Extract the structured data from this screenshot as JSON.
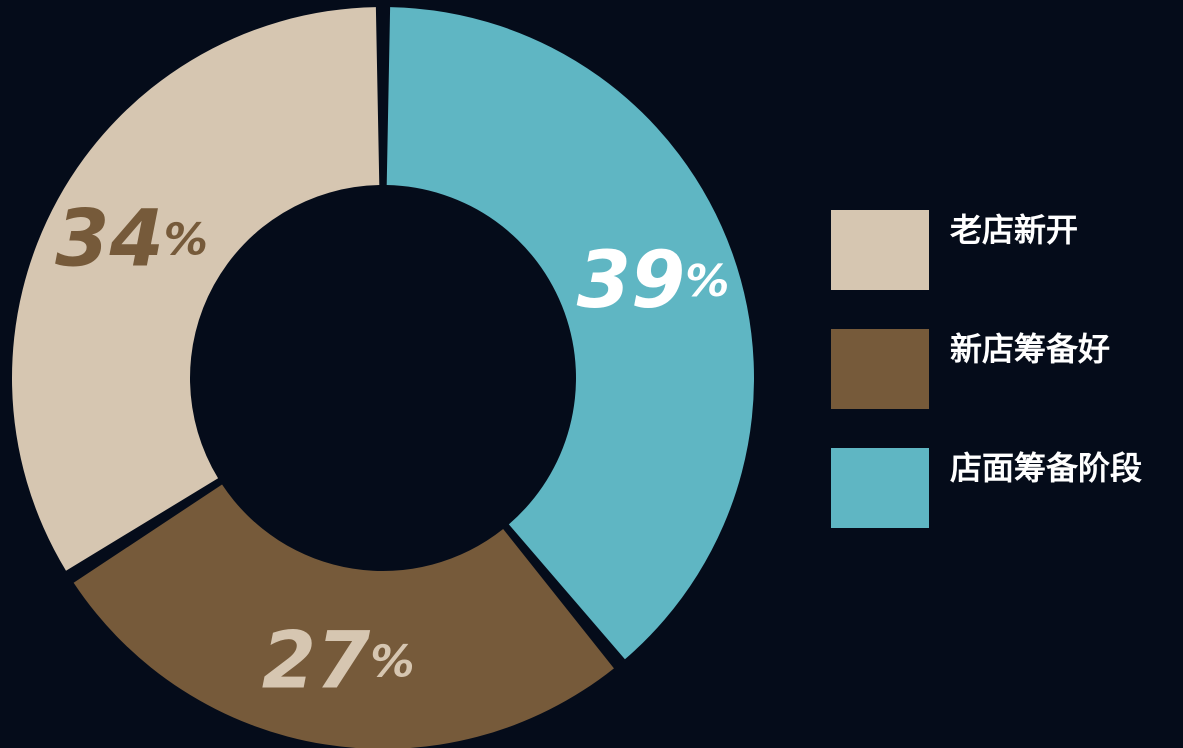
{
  "chart_data": {
    "type": "pie",
    "style": "donut",
    "title": "",
    "categories": [
      "老店新开",
      "新店筹备好",
      "店面筹备阶段"
    ],
    "values": [
      34,
      27,
      39
    ],
    "value_labels": [
      "34%",
      "27%",
      "39%"
    ],
    "colors": [
      "#d6c6b1",
      "#765a3a",
      "#5fb6c3"
    ],
    "label_colors": [
      "#765a3a",
      "#d6c6b1",
      "#ffffff"
    ],
    "legend_position": "right",
    "background": "#050c1a"
  },
  "legend": {
    "items": [
      {
        "label": "老店新开",
        "color": "#d6c6b1"
      },
      {
        "label": "新店筹备好",
        "color": "#765a3a"
      },
      {
        "label": "店面筹备阶段",
        "color": "#5fb6c3"
      }
    ]
  }
}
